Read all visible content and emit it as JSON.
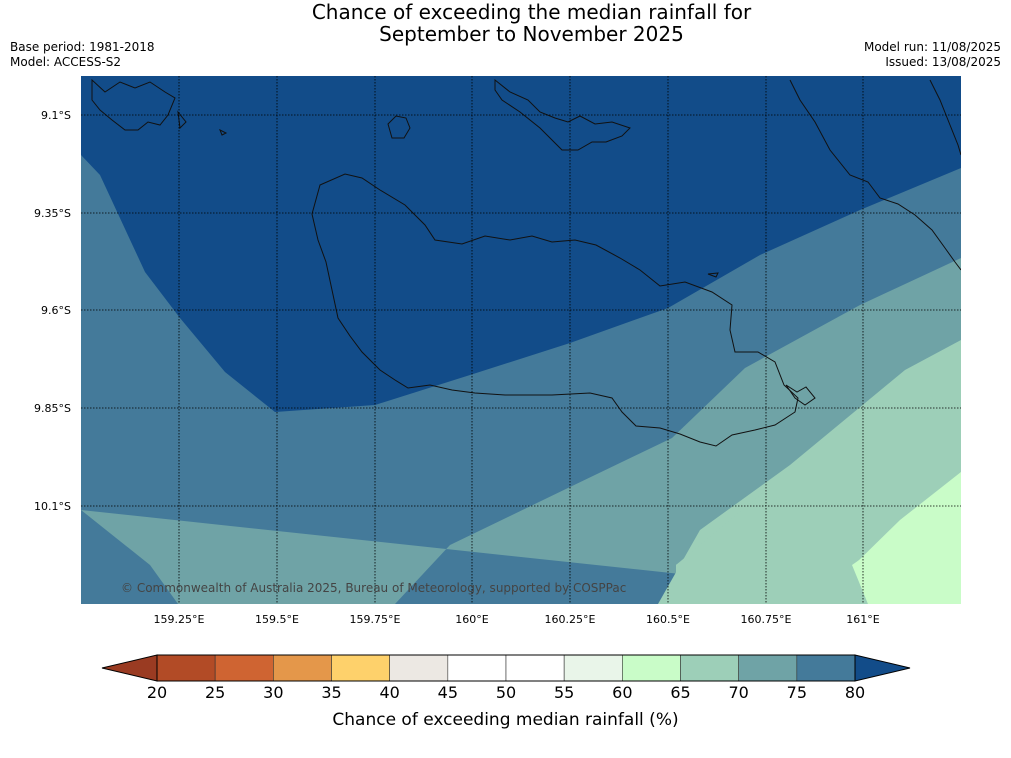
{
  "title_line1": "Chance of exceeding the median rainfall for",
  "title_line2": "September to November 2025",
  "base_period": "Base period: 1981-2018",
  "model": "Model: ACCESS-S2",
  "model_run": "Model run: 11/08/2025",
  "issued": "Issued: 13/08/2025",
  "copyright": "© Commonwealth of Australia 2025, Bureau of Meteorology, supported by COSPPac",
  "lat_labels": [
    "9.1°S",
    "9.35°S",
    "9.6°S",
    "9.85°S",
    "10.1°S"
  ],
  "lon_labels": [
    "159.25°E",
    "159.5°E",
    "159.75°E",
    "160°E",
    "160.25°E",
    "160.5°E",
    "160.75°E",
    "161°E"
  ],
  "colorbar": {
    "ticks": [
      "20",
      "25",
      "30",
      "35",
      "40",
      "45",
      "50",
      "55",
      "60",
      "65",
      "70",
      "75",
      "80"
    ],
    "label": "Chance of exceeding median rainfall (%)",
    "bin_colors": [
      "#b24b26",
      "#cf6432",
      "#e4974a",
      "#fed16b",
      "#ece8e3",
      "#ffffff",
      "#ffffff",
      "#e9f5e9",
      "#c9fcc8",
      "#9dcfb8",
      "#6fa3a6",
      "#447a9a"
    ],
    "under_color": "#9a3b22",
    "over_color": "#124c89"
  },
  "map_fill_colors": {
    "over_80": "#124c89",
    "75_80": "#447a9a",
    "70_75": "#6fa3a6",
    "65_70": "#9dcfb8",
    "60_65": "#c9fcc8"
  }
}
